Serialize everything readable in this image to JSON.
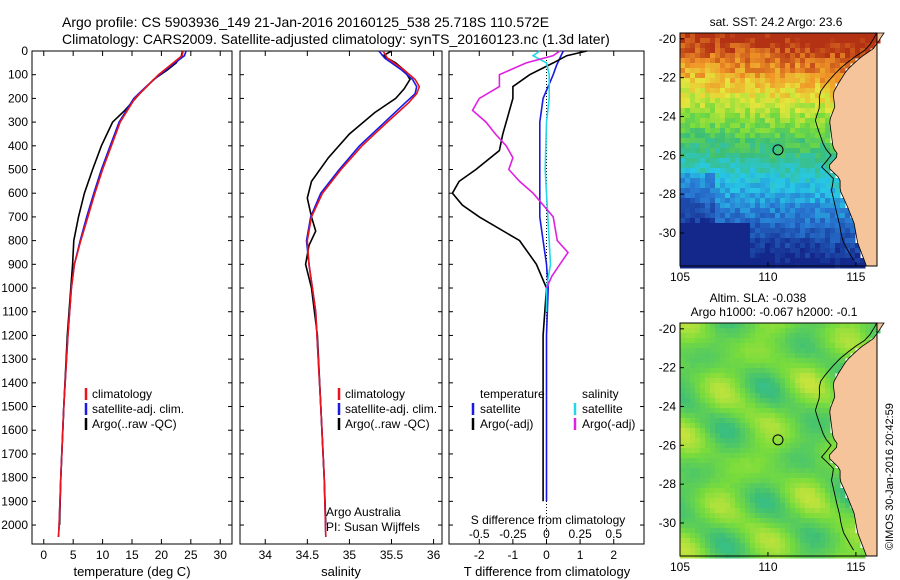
{
  "header": {
    "line1": "Argo profile: CS 5903936_149 21-Jan-2016 20160125_538 25.718S 110.572E",
    "line2": "Climatology: CARS2009. Satellite-adjusted climatology: synTS_20160123.nc (1.3d later)"
  },
  "colors": {
    "climatology": "#e8141e",
    "satellite": "#1a1ae6",
    "argo": "#000000",
    "sat_sal": "#22d8e8",
    "argo_sal_diff": "#e020e0",
    "land": "#f5c49a"
  },
  "chart_data": [
    {
      "id": "temperature",
      "type": "line",
      "xlabel": "temperature (deg C)",
      "ylabel": "",
      "xlim": [
        -2,
        32
      ],
      "ylim": [
        2080,
        0
      ],
      "xticks": [
        "0",
        "5",
        "10",
        "15",
        "20",
        "25",
        "30"
      ],
      "xtick_values": [
        0,
        5,
        10,
        15,
        20,
        25,
        30
      ],
      "yticks": [
        "0",
        "100",
        "200",
        "300",
        "400",
        "500",
        "600",
        "700",
        "800",
        "900",
        "1000",
        "1100",
        "1200",
        "1300",
        "1400",
        "1500",
        "1600",
        "1700",
        "1800",
        "1900",
        "2000"
      ],
      "ytick_values": [
        0,
        100,
        200,
        300,
        400,
        500,
        600,
        700,
        800,
        900,
        1000,
        1100,
        1200,
        1300,
        1400,
        1500,
        1600,
        1700,
        1800,
        1900,
        2000
      ],
      "legend": [
        "climatology",
        "satellite-adj. clim.",
        "Argo(..raw -QC)"
      ],
      "series": [
        {
          "name": "climatology",
          "color": "#e8141e",
          "depth": [
            0,
            20,
            50,
            100,
            150,
            200,
            300,
            400,
            500,
            600,
            700,
            800,
            900,
            1000,
            1200,
            1500,
            1800,
            2000,
            2050
          ],
          "values": [
            23.7,
            23.5,
            22.0,
            19.5,
            17.5,
            15.5,
            13.0,
            11.5,
            10.0,
            8.7,
            7.5,
            6.3,
            5.2,
            4.7,
            4.1,
            3.4,
            2.9,
            2.6,
            2.5
          ]
        },
        {
          "name": "satellite-adj. clim.",
          "color": "#1a1ae6",
          "depth": [
            0,
            20,
            50,
            100,
            150,
            200,
            300,
            400,
            500,
            600,
            700,
            800,
            900,
            1000,
            1200,
            1500,
            1800,
            2000,
            2050
          ],
          "values": [
            24.2,
            23.9,
            22.3,
            19.7,
            17.4,
            15.3,
            12.8,
            11.3,
            9.8,
            8.5,
            7.3,
            6.2,
            5.2,
            4.7,
            4.1,
            3.4,
            2.9,
            2.6,
            2.5
          ]
        },
        {
          "name": "Argo(..raw -QC)",
          "color": "#000000",
          "depth": [
            0,
            20,
            50,
            80,
            120,
            180,
            250,
            300,
            400,
            500,
            600,
            700,
            800,
            900,
            1000,
            1200,
            1500,
            1800,
            2000
          ],
          "values": [
            23.6,
            23.4,
            22.5,
            21.0,
            18.7,
            16.3,
            13.8,
            11.7,
            9.8,
            8.3,
            6.9,
            5.9,
            5.1,
            4.9,
            4.6,
            4.0,
            3.4,
            2.9,
            2.7
          ]
        }
      ]
    },
    {
      "id": "salinity",
      "type": "line",
      "xlabel": "salinity",
      "xlim": [
        33.7,
        36.1
      ],
      "ylim": [
        2080,
        0
      ],
      "xticks": [
        "34",
        "34.5",
        "35",
        "35.5",
        "36"
      ],
      "xtick_values": [
        34,
        34.5,
        35,
        35.5,
        36
      ],
      "legend": [
        "climatology",
        "satellite-adj. clim.",
        "Argo(..raw -QC)"
      ],
      "annotation": [
        "Argo Australia",
        "PI: Susan Wijffels"
      ],
      "series": [
        {
          "name": "climatology",
          "color": "#e8141e",
          "depth": [
            0,
            30,
            80,
            120,
            150,
            180,
            220,
            300,
            400,
            500,
            600,
            700,
            800,
            900,
            1000,
            1100,
            1500,
            1800,
            2050
          ],
          "values": [
            35.4,
            35.45,
            35.65,
            35.78,
            35.83,
            35.8,
            35.7,
            35.45,
            35.15,
            34.9,
            34.68,
            34.55,
            34.5,
            34.52,
            34.56,
            34.6,
            34.66,
            34.7,
            34.72
          ]
        },
        {
          "name": "satellite-adj. clim.",
          "color": "#1a1ae6",
          "depth": [
            0,
            30,
            80,
            120,
            150,
            180,
            220,
            300,
            400,
            500,
            600,
            700,
            800,
            900,
            1000,
            1100,
            1500,
            1800,
            2050
          ],
          "values": [
            35.35,
            35.42,
            35.62,
            35.75,
            35.8,
            35.78,
            35.66,
            35.42,
            35.12,
            34.88,
            34.66,
            34.54,
            34.49,
            34.52,
            34.56,
            34.6,
            34.66,
            34.7,
            34.72
          ]
        },
        {
          "name": "Argo(..raw -QC)",
          "color": "#000000",
          "depth": [
            0,
            20,
            50,
            80,
            120,
            160,
            200,
            260,
            350,
            450,
            550,
            620,
            700,
            760,
            820,
            900,
            1000,
            1200,
            1500,
            1800,
            2000
          ],
          "values": [
            35.5,
            35.4,
            35.55,
            35.65,
            35.72,
            35.65,
            35.55,
            35.3,
            35.0,
            34.75,
            34.55,
            34.5,
            34.55,
            34.6,
            34.52,
            34.48,
            34.55,
            34.62,
            34.66,
            34.7,
            34.72
          ]
        }
      ]
    },
    {
      "id": "difference",
      "type": "line",
      "xlabel": "T difference from climatology",
      "x2label": "S difference from climatology",
      "xlim": [
        -2.9,
        2.9
      ],
      "ylim": [
        2080,
        0
      ],
      "xticks": [
        "-2",
        "-1",
        "0",
        "1",
        "2"
      ],
      "xtick_values": [
        -2,
        -1,
        0,
        1,
        2
      ],
      "x2ticks": [
        "-0.5",
        "-0.25",
        "0",
        "0.25",
        "0.5"
      ],
      "x2tick_values": [
        -0.5,
        -0.25,
        0,
        0.25,
        0.5
      ],
      "legend_temperature": [
        "temperature",
        "satellite",
        "Argo(-adj)"
      ],
      "legend_salinity": [
        "salinity",
        "satellite",
        "Argo(-adj)"
      ],
      "series": [
        {
          "name": "temperature satellite",
          "color": "#1a1ae6",
          "depth": [
            0,
            30,
            60,
            100,
            200,
            300,
            400,
            500,
            600,
            700,
            800,
            900,
            1000,
            1200,
            1500,
            1800,
            1900
          ],
          "values": [
            0.5,
            0.4,
            0.3,
            0.2,
            -0.1,
            -0.2,
            -0.2,
            -0.2,
            -0.2,
            -0.2,
            -0.1,
            0.0,
            0.05,
            0.0,
            0.0,
            0.0,
            0.0
          ]
        },
        {
          "name": "temperature Argo(-adj)",
          "color": "#000000",
          "depth": [
            0,
            20,
            50,
            100,
            150,
            200,
            300,
            350,
            420,
            500,
            550,
            600,
            650,
            700,
            800,
            900,
            1000,
            1200,
            1500,
            1800,
            1900
          ],
          "values": [
            1.2,
            0.6,
            0.2,
            -0.5,
            -1.0,
            -1.0,
            -1.2,
            -1.3,
            -1.4,
            -2.1,
            -2.6,
            -2.8,
            -2.5,
            -2.0,
            -0.8,
            -0.3,
            0.0,
            -0.1,
            -0.1,
            -0.1,
            -0.1
          ]
        },
        {
          "name": "salinity satellite",
          "color": "#22d8e8",
          "depth": [
            0,
            20,
            50,
            100,
            200,
            300,
            500,
            700,
            900,
            1000,
            1100
          ],
          "values": [
            -0.05,
            -0.1,
            0.0,
            0.02,
            0.02,
            0.0,
            -0.01,
            0.01,
            0.03,
            0.0,
            0.0
          ]
        },
        {
          "name": "salinity Argo(-adj)",
          "color": "#e020e0",
          "depth": [
            0,
            20,
            50,
            100,
            150,
            200,
            250,
            300,
            350,
            400,
            450,
            500,
            550,
            600,
            700,
            800,
            850,
            900,
            950,
            1000
          ],
          "values": [
            0.1,
            0.05,
            -0.15,
            -0.35,
            -0.35,
            -0.5,
            -0.55,
            -0.45,
            -0.38,
            -0.3,
            -0.25,
            -0.28,
            -0.2,
            -0.1,
            0.05,
            0.08,
            0.16,
            0.1,
            0.04,
            0.0
          ]
        }
      ]
    },
    {
      "id": "sst-map",
      "type": "heatmap",
      "title": "sat. SST: 24.2 Argo: 23.6",
      "xlim": [
        105,
        116.2
      ],
      "ylim": [
        -31.7,
        -19.7
      ],
      "xticks": [
        "105",
        "110",
        "115"
      ],
      "xtick_values": [
        105,
        110,
        115
      ],
      "yticks": [
        "-20",
        "-22",
        "-24",
        "-26",
        "-28",
        "-30"
      ],
      "ytick_values": [
        -20,
        -22,
        -24,
        -26,
        -28,
        -30
      ],
      "argo_position": {
        "lon": 110.572,
        "lat": -25.718
      }
    },
    {
      "id": "sla-map",
      "type": "heatmap",
      "title_line1": "Altim. SLA: -0.038",
      "title_line2": "Argo h1000: -0.067 h2000: -0.1",
      "xlim": [
        105,
        116.2
      ],
      "ylim": [
        -31.7,
        -19.7
      ],
      "xticks": [
        "105",
        "110",
        "115"
      ],
      "xtick_values": [
        105,
        110,
        115
      ],
      "yticks": [
        "-20",
        "-22",
        "-24",
        "-26",
        "-28",
        "-30"
      ],
      "ytick_values": [
        -20,
        -22,
        -24,
        -26,
        -28,
        -30
      ],
      "argo_position": {
        "lon": 110.572,
        "lat": -25.718
      }
    }
  ],
  "credit": "©IMOS 30-Jan-2016 20:42:59"
}
